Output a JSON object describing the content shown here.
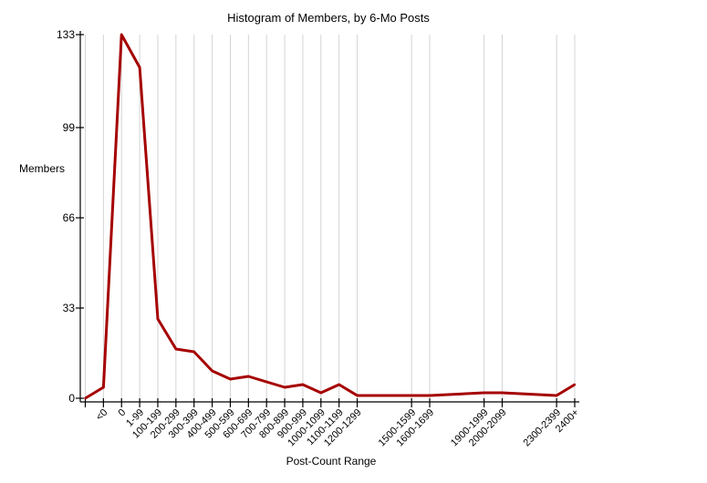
{
  "chart_data": {
    "type": "line",
    "title": "Histogram of Members, by 6-Mo Posts",
    "xlabel": "Post-Count Range",
    "ylabel": "Members",
    "ylim": [
      0,
      133
    ],
    "yticks": [
      0,
      33,
      66,
      99,
      133
    ],
    "grid": "vertical",
    "line_color": "#a50000",
    "points": [
      {
        "label": "",
        "slot": 0,
        "value": 0
      },
      {
        "label": "<0",
        "slot": 1,
        "value": 4
      },
      {
        "label": "0",
        "slot": 2,
        "value": 133
      },
      {
        "label": "1-99",
        "slot": 3,
        "value": 121
      },
      {
        "label": "100-199",
        "slot": 4,
        "value": 29
      },
      {
        "label": "200-299",
        "slot": 5,
        "value": 18
      },
      {
        "label": "300-399",
        "slot": 6,
        "value": 17
      },
      {
        "label": "400-499",
        "slot": 7,
        "value": 10
      },
      {
        "label": "500-599",
        "slot": 8,
        "value": 7
      },
      {
        "label": "600-699",
        "slot": 9,
        "value": 8
      },
      {
        "label": "700-799",
        "slot": 10,
        "value": 6
      },
      {
        "label": "800-899",
        "slot": 11,
        "value": 4
      },
      {
        "label": "900-999",
        "slot": 12,
        "value": 5
      },
      {
        "label": "1000-1099",
        "slot": 13,
        "value": 2
      },
      {
        "label": "1100-1199",
        "slot": 14,
        "value": 5
      },
      {
        "label": "1200-1299",
        "slot": 15,
        "value": 1
      },
      {
        "label": "1500-1599",
        "slot": 18,
        "value": 1
      },
      {
        "label": "1600-1699",
        "slot": 19,
        "value": 1
      },
      {
        "label": "1900-1999",
        "slot": 22,
        "value": 2
      },
      {
        "label": "2000-2099",
        "slot": 23,
        "value": 2
      },
      {
        "label": "2300-2399",
        "slot": 26,
        "value": 1
      },
      {
        "label": "2400+",
        "slot": 27,
        "value": 5
      }
    ]
  }
}
